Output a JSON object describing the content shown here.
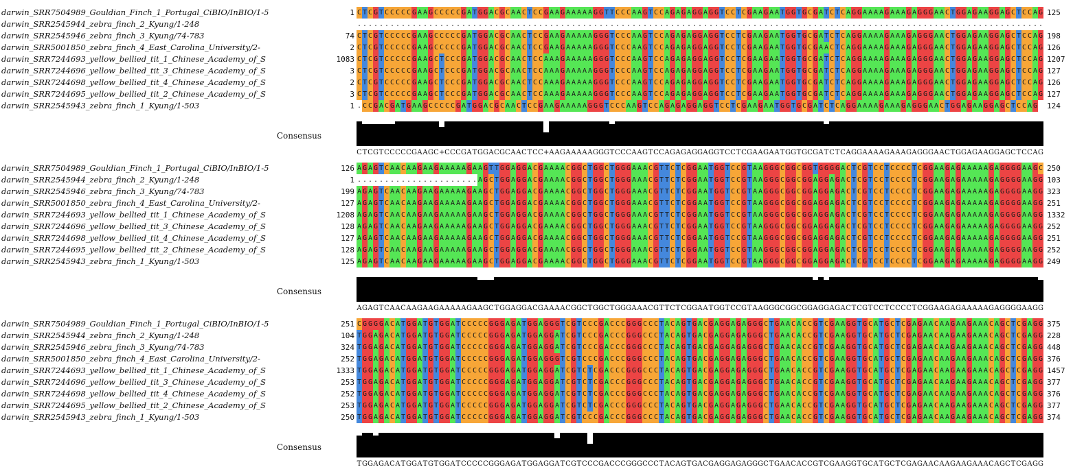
{
  "sequence_names": [
    "darwin_SRR7504989_Gouldian_Finch_1_Portugal_CiBIO/InBIO/1-5",
    "darwin_SRR2545944_zebra_finch_2_Kyung/1-248",
    "darwin_SRR2545946_zebra_finch_3_Kyung/74-783",
    "darwin_SRR5001850_zebra_finch_4_East_Carolina_University/2-",
    "darwin_SRR7244693_yellow_bellied_tit_1_Chinese_Academy_of_S",
    "darwin_SRR7244696_yellow_bellied_tit_3_Chinese_Academy_of_S",
    "darwin_SRR7244698_yellow_bellied_tit_4_Chinese_Academy_of_S",
    "darwin_SRR7244695_yellow_bellied_tit_2_Chinese_Academy_of_S",
    "darwin_SRR2545943_zebra_finch_1_Kyung/1-503"
  ],
  "consensus_label": "Consensus",
  "blocks": [
    {
      "rows": [
        {
          "start": "1",
          "end": "125",
          "seq": "CTCGTCCCCCGAAGCCCCCGATGGACGCAACTCCGAAGAAAAAGGTTCCCAAGTCCAGAGAGGAGGTCCTCGAAGAATGGTGCGATCTCAGGAAAAGAAAGAGGGAACTGGAGAAGGAGCTCCAG"
        },
        {
          "start": "",
          "end": "",
          "seq": "............................................................................................................................."
        },
        {
          "start": "74",
          "end": "198",
          "seq": "CTCGTCCCCCGAAGCCCCCGATGGACGCAACTCCGAAGAAAAAGGGTCCCAAGTCCAGAGAGGAGGTCCTCGAAGAATGGTGCGATCTCAGGAAAAGAAAGAGGGAACTGGAGAAGGAGCTCCAG"
        },
        {
          "start": "2",
          "end": "126",
          "seq": "CTCGTCCCCCGAAGCCCCCGATGGACGCAACTCCGAAGAAAAAGGGTCCCAAGTCCAGAGAGGAGGTCCTCGAAGAATGGTGCGAACTCAGGAAAAGAAAGAGGGAACTGGAGAAGGAGCTCCAG"
        },
        {
          "start": "1083",
          "end": "1207",
          "seq": "CTCGTCCCCCGAAGCTCCCGATGGACGCAACTCCAAAGAAAAAGGGTCCCAAGTCCAGAGAGGAGGTCCTCGAAGAATGGTGCGATCTCAGGAAAAGAAAGAGGGAACTGGAGAAGGAGCTCCAG"
        },
        {
          "start": "3",
          "end": "127",
          "seq": "CTCGTCCCCCGAAGCTCCCGATGGACGCAACTCCAAAGAAAAAGGGTCCCAAGTCCAGAGAGGAGGTCCTCGAAGAATGGTGCGATCTCAGGAAAAGAAAGAGGGAACTGGAGAAGGAGCTCCAG"
        },
        {
          "start": "2",
          "end": "126",
          "seq": "CTCGTCCCCCGAAGCTCCCGATGGACGCAACTCCAAAGAAAAAGGGTCCCAAGTCCAGAGAGGAGGTCCTCGAAGAATGGTGCGATCTCAGGAAAAGAAAGAGGGAACTGGAGAAGGAGCTCCAG"
        },
        {
          "start": "3",
          "end": "127",
          "seq": "CTCGTCCCCCGAAGCTCCCGATGGACGCAACTCCAAAGAAAAAGGGTCCCAAGTCCAGAGAGGAGGTCCTCGAAGAATGGTGCGATCTCAGGAAAAGAAAGAGGGAACTGGAGAAGGAGCTCCAG"
        },
        {
          "start": "1",
          "end": "124",
          "seq": ".CCGACGATGAAGCCCCCGATGGACGCAACTCCGAAGAAAAAGGGTCCCAAGTCCAGAGAGGAGGTCCTCGAAGAATGGTGCGATCTCAGGAAAAGAAAGAGGGAACTGGAGAAGGAGCTCCAG"
        }
      ],
      "consensus": "CTCGTCCCCCGAAGC+CCCGATGGACGCAACTCC+AAGAAAAAGGGTCCCAAGTCCAGAGAGGAGGTCCTCGAAGAATGGTGCGATCTCAGGAAAAGAAAGAGGGAACTGGAGAAGGAGCTCCAG",
      "conservation": [
        100,
        89,
        89,
        89,
        89,
        89,
        89,
        100,
        100,
        100,
        100,
        100,
        100,
        100,
        100,
        78,
        100,
        100,
        100,
        100,
        100,
        100,
        100,
        100,
        100,
        100,
        100,
        100,
        100,
        100,
        100,
        100,
        100,
        100,
        56,
        100,
        100,
        100,
        100,
        100,
        100,
        100,
        100,
        100,
        100,
        100,
        89,
        100,
        100,
        100,
        100,
        100,
        100,
        100,
        100,
        100,
        100,
        100,
        100,
        100,
        100,
        100,
        100,
        100,
        100,
        100,
        100,
        100,
        100,
        100,
        100,
        100,
        100,
        100,
        100,
        100,
        100,
        100,
        100,
        100,
        100,
        100,
        100,
        100,
        100,
        89,
        100,
        100,
        100,
        100,
        100,
        100,
        100,
        100,
        100,
        100,
        100,
        100,
        100,
        100,
        100,
        100,
        100,
        100,
        100,
        100,
        100,
        100,
        100,
        100,
        100,
        100,
        100,
        100,
        100,
        100,
        100,
        100,
        100,
        100,
        100,
        100,
        100,
        100,
        100
      ]
    },
    {
      "rows": [
        {
          "start": "126",
          "end": "250",
          "seq": "AGAGTCAACAAGAAGAAAAAGAAGTTGGAGGACGAAAACGGCTGGCTGGGAAACGTTCTCGGAATGGTCCGTAAGGGCGGCGGTGGGGACTCGTCCTCCCCTCGGAAGAGAAAAAGAGGGGAAGC"
        },
        {
          "start": "1",
          "end": "103",
          "seq": "......................AGCTGGAGGACGAAAACGGCTGGCTGGGAAACGTTCTCGGAATGGTCCGTAAGGGCGGCGGAGGAGACTCGTCCTCCCCTCGGAAGAGAAAAAGAGGGGAAGG"
        },
        {
          "start": "199",
          "end": "323",
          "seq": "AGAGTCAACAAGAAGAAAAAGAAGCTGGAGGACGAAAACGGCTGGCTGGGAAACGTTCTCGGAATGGTCCGTAAGGGCGGCGGAGGAGACTCGTCCTCCCCTCGGAAGAGAAAAAGAGGGGAAGG"
        },
        {
          "start": "127",
          "end": "251",
          "seq": "AGAGTCAACAAGAAGAAAAAGAAGCTGGAGGACGAAAACGGCTGGCTGGGAAACGTTCTCGGAATGGTCCGTAAGGGCGGCGGAGGAGACTCGTCCTCCCCTCGGAAGAGAAAAAGAGGGGAAGG"
        },
        {
          "start": "1208",
          "end": "1332",
          "seq": "AGAGTCAACAAGAAGAAAAAGAAGCTGGAGGACGAAAACGGCTGGCTGGGAAACGTTCTCGGAATGGTCCGTAAGGGCGGCGGAGGAGACTCGTCCTCCCCTCGGAAGAGAAAAAGAGGGGAAGG"
        },
        {
          "start": "128",
          "end": "252",
          "seq": "AGAGTCAACAAGAAGAAAAAGAAGCTGGAGGACGAAAACGGCTGGCTGGGAAACGTTCTCGGAATGGTCCGTAAGGGCGGCGGAGGAGACTCGTCCTCCCCTCGGAAGAGAAAAAGAGGGGAAGG"
        },
        {
          "start": "127",
          "end": "251",
          "seq": "AGAGTCAACAAGAAGAAAAAGAAGCTGGAGGACGAAAACGGCTGGCTGGGAAACGTTCTCGGAATGGTCCGTAAGGGCGGCGGAGGAGACTCGTCCTCCCCTCGGAAGAGAAAAAGAGGGGAAGG"
        },
        {
          "start": "128",
          "end": "252",
          "seq": "AGAGTCAACAAGAAGAAAAAGAAGCTGGAGGACGAAAACGGCTGGCTGGGAAACGTTCTCGGAATGGTCCGTAAGGGCGGCGGAGGAGACTCGTCCTCCCCTCGGAAGAGAAAAAGAGGGGAAGG"
        },
        {
          "start": "125",
          "end": "249",
          "seq": "AGAGTCAACAAGAAGAAAAAGAAGCTGGAGGACGAAAACGGCTGGCTGGGAAACGTTCTCGGAATGGTCCGTAAGGGCGGCGGAGGAGACTCGTCCTCCCCTCGGAAGAGAAAAAGAGGGGAAGG"
        }
      ],
      "consensus": "AGAGTCAACAAGAAGAAAAAGAAGCTGGAGGACGAAAACGGCTGGCTGGGAAACGTTCTCGGAATGGTCCGTAAGGGCGGCGGAGGAGACTCGTCCTCCCCTCGGAAGAGAAAAAGAGGGGAAGG",
      "conservation": [
        100,
        100,
        100,
        100,
        100,
        100,
        100,
        100,
        100,
        100,
        100,
        100,
        100,
        100,
        100,
        100,
        100,
        100,
        100,
        100,
        100,
        100,
        89,
        89,
        89,
        100,
        100,
        100,
        100,
        100,
        100,
        100,
        100,
        100,
        100,
        100,
        100,
        100,
        100,
        100,
        100,
        100,
        100,
        100,
        100,
        100,
        100,
        100,
        100,
        100,
        100,
        100,
        100,
        100,
        100,
        100,
        100,
        100,
        100,
        100,
        100,
        100,
        100,
        100,
        100,
        100,
        100,
        100,
        100,
        100,
        100,
        100,
        100,
        100,
        100,
        100,
        100,
        100,
        100,
        100,
        100,
        100,
        100,
        89,
        100,
        89,
        100,
        100,
        100,
        100,
        100,
        100,
        100,
        100,
        100,
        100,
        100,
        100,
        100,
        100,
        100,
        100,
        100,
        100,
        100,
        100,
        100,
        100,
        100,
        100,
        100,
        100,
        100,
        100,
        100,
        100,
        100,
        100,
        100,
        100,
        100,
        100,
        100,
        100,
        89
      ]
    },
    {
      "rows": [
        {
          "start": "251",
          "end": "375",
          "seq": "CGGGGACATGGATGTGGATCCCCCGGGAGATGGAGGGTCGTCCCGACCCGGGCCCTACAGTGACGAGGAGAGGGCTGAACACCGTCGAAGGTGCATGCTCGAGAACAAGAAGAAACAGCTCGAGG"
        },
        {
          "start": "104",
          "end": "228",
          "seq": "TGGAGACATGGATGTGGATCCCCCGGGAGATGGAGGATCGTCCCGACCCGGGCCCTACAGTGACGAGGAGAGGGCTGAACACCGTCGAAGGTGCATGCTCGAGAACAAGAAGAAACAGCTCGAGG"
        },
        {
          "start": "324",
          "end": "448",
          "seq": "TGGAGACATGGATGTGGATCCCCCGGGAGATGGAGGATCGTCCCGACCCGGGCCCTACAGTGACGAGGAGAGGGCTGAACACCGTCGAAGGTGCATGCTCGAGAACAAGAAGAAACAGCTCGAGG"
        },
        {
          "start": "252",
          "end": "376",
          "seq": "TGGAGACATGGATGTGGATCCCCCGGGAGATGGAGGGTCGTCCCGACCCGGGCCCTACAGTGACGAGGAGAGGGCTGAACACCGTCGAAGGTGCATGCTCGAGAACAAGAAGAAACAGCTCGAGG"
        },
        {
          "start": "1333",
          "end": "1457",
          "seq": "TGGAGACATGGATGTGGATCCCCCGGGAGATGGAGGATCGTCTCGACCCGGGCCCTACAGTGACGAGGAGAGGGCTGAACACCGTCGAAGGTGCATGCTCGAGAACAAGAAGAAACAGCTCGAGG"
        },
        {
          "start": "253",
          "end": "377",
          "seq": "TGGAGACATGGATGTGGATCCCCCGGGAGATGGAGGATCGTCTCGACCCGGGCCCTACAGTGACGAGGAGAGGGCTGAACACCGTCGAAGGTGCATGCTCGAGAACAAGAAGAAACAGCTCGAGG"
        },
        {
          "start": "252",
          "end": "376",
          "seq": "TGGAGACATGGATGTGGATCCCCCGGGAGATGGAGGATCGTCTCGACCCGGGCCCTACAGTGACGAGGAGAGGGCTGAACACCGTCGAAGGTGCATGCTCGAGAACAAGAAGAAACAGCTCGAGG"
        },
        {
          "start": "253",
          "end": "377",
          "seq": "TGGAGACATGGATGTGGATCCCCCGGGAGATGGAGGATCGTCTCGACCCGGGCCCTACAGTGACGAGGAGAGGGCTGAACACCGTCGAAGGTGCATGCTCGAGAACAAGAAGAAACAGCTCGAGG"
        },
        {
          "start": "250",
          "end": "374",
          "seq": "TGGAGACATGGATGTGGATCCCCCGGGAGATGGAGGATCGTCCCGACCCGGGCCCTACAGTGACGAGGAGAGGGCTGAACACCGTCGAAGGTGCATGCTCGAGAACAAGAAGAAACAGCTCGAGG"
        }
      ],
      "consensus": "TGGAGACATGGATGTGGATCCCCCGGGAGATGGAGGATCGTCCCGACCCGGGCCCTACAGTGACGAGGAGAGGGCTGAACACCGTCGAAGGTGCATGCTCGAGAACAAGAAGAAACAGCTCGAGG",
      "conservation": [
        89,
        100,
        100,
        89,
        100,
        100,
        100,
        100,
        100,
        100,
        100,
        100,
        100,
        100,
        100,
        100,
        100,
        100,
        100,
        100,
        100,
        100,
        100,
        100,
        100,
        100,
        100,
        100,
        100,
        100,
        100,
        100,
        100,
        100,
        100,
        100,
        78,
        100,
        100,
        100,
        100,
        100,
        56,
        100,
        100,
        100,
        100,
        100,
        100,
        100,
        100,
        100,
        100,
        100,
        100,
        100,
        100,
        100,
        100,
        100,
        100,
        100,
        100,
        100,
        100,
        100,
        100,
        100,
        100,
        100,
        100,
        100,
        100,
        100,
        100,
        100,
        100,
        100,
        100,
        100,
        100,
        100,
        100,
        100,
        100,
        100,
        100,
        100,
        100,
        100,
        100,
        100,
        100,
        100,
        100,
        100,
        100,
        100,
        100,
        100,
        100,
        100,
        100,
        100,
        100,
        100,
        100,
        100,
        100,
        100,
        100,
        100,
        100,
        100,
        100,
        100,
        100,
        100,
        100,
        100,
        100,
        100,
        100,
        100,
        100
      ]
    }
  ],
  "colors": {
    "A": "#55e655",
    "C": "#f7a637",
    "G": "#ec4444",
    "T": "#4488dd",
    "gap": "#ffffff",
    "histogram": "#000000"
  }
}
